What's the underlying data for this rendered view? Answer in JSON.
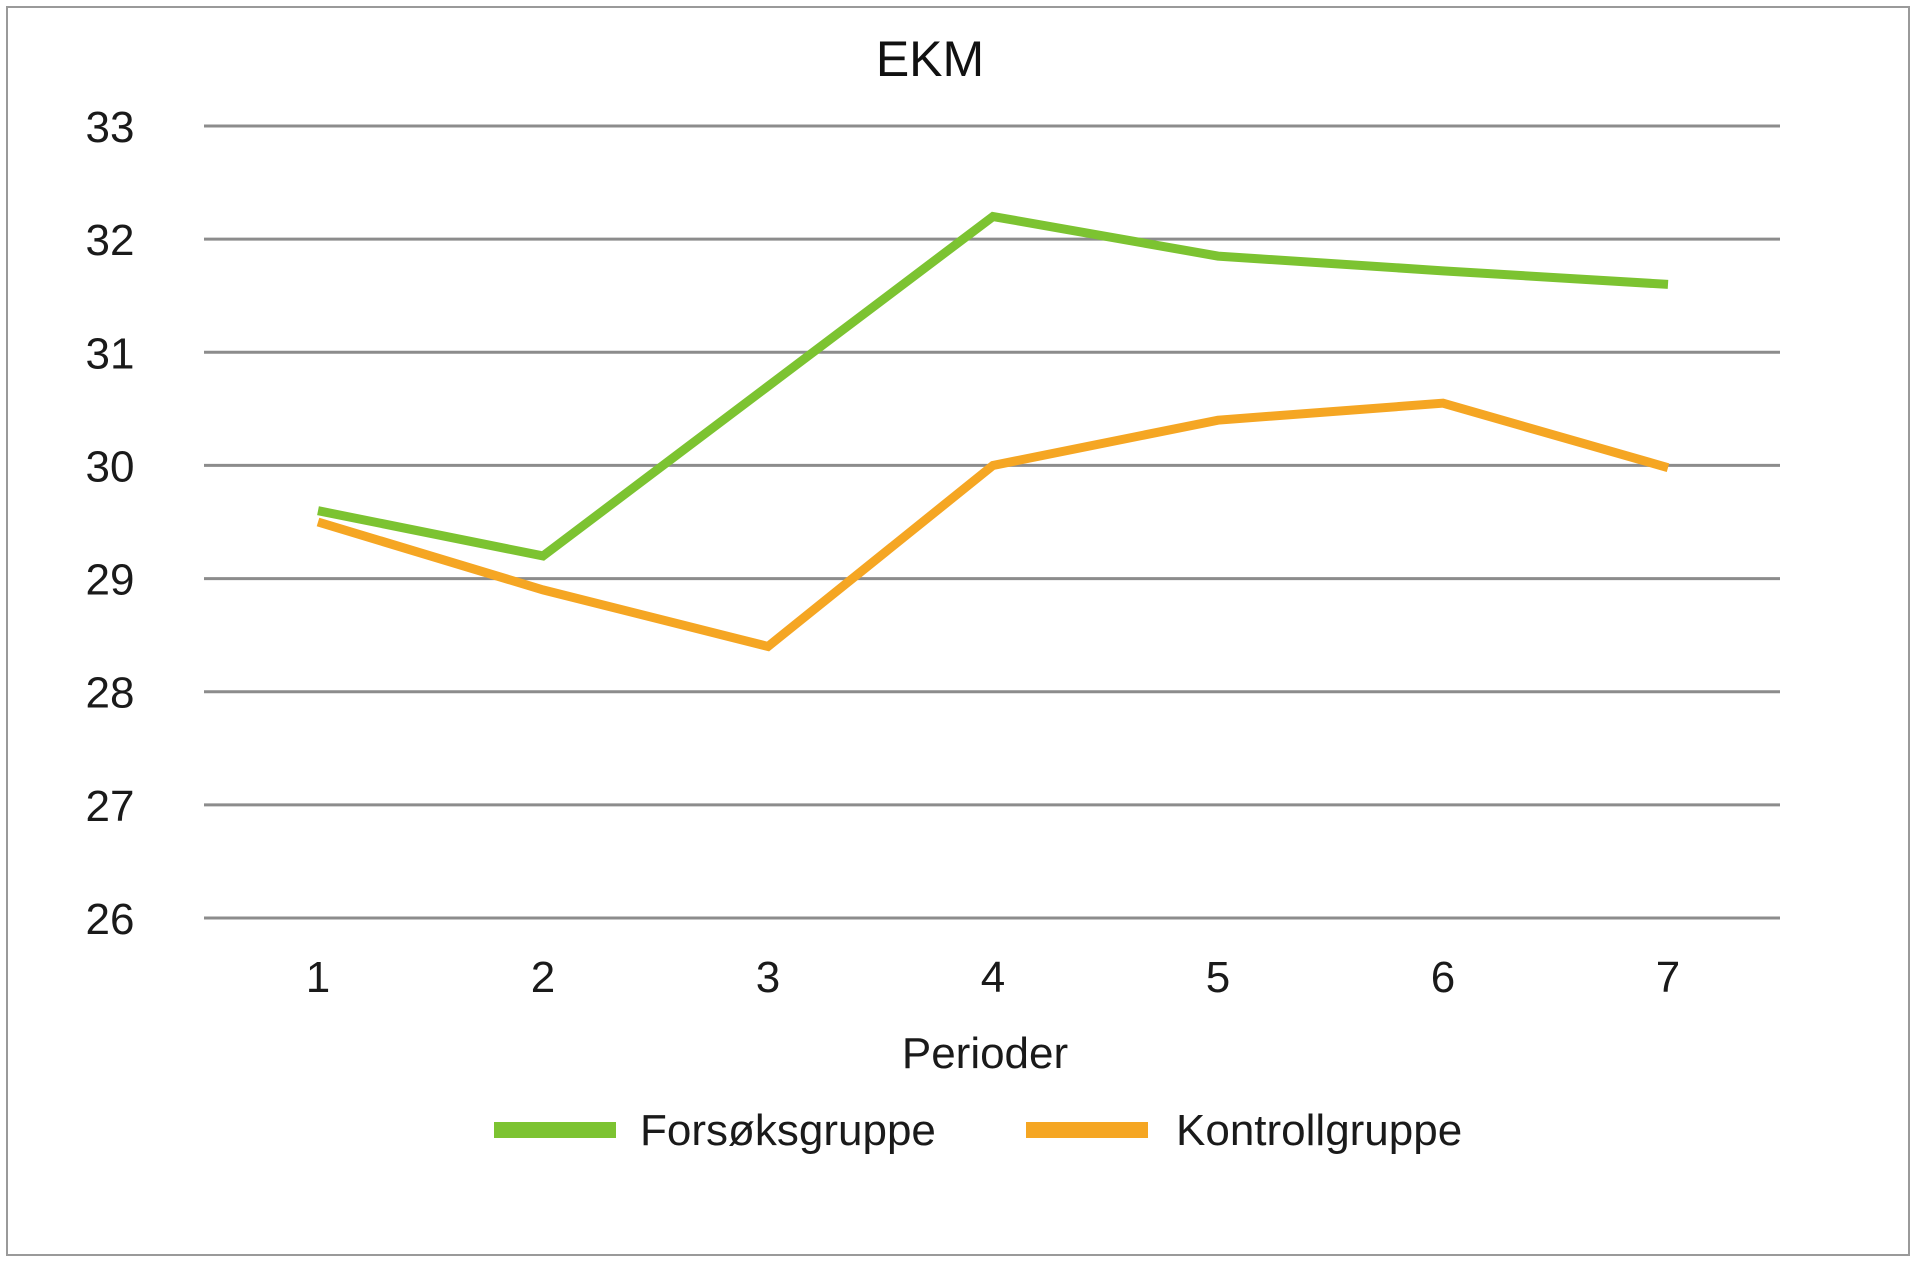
{
  "chart_data": {
    "type": "line",
    "title": "EKM",
    "xlabel": "Perioder",
    "ylabel": "",
    "categories": [
      "1",
      "2",
      "3",
      "4",
      "5",
      "6",
      "7"
    ],
    "ylim": [
      26,
      33
    ],
    "yticks": [
      26,
      27,
      28,
      29,
      30,
      31,
      32,
      33
    ],
    "grid": true,
    "legend": "bottom",
    "series": [
      {
        "name": "Forsøksgruppe",
        "color": "#7cc331",
        "values": [
          29.6,
          29.2,
          30.7,
          32.2,
          31.85,
          31.72,
          31.6
        ]
      },
      {
        "name": "Kontrollgruppe",
        "color": "#f5a623",
        "values": [
          29.5,
          28.9,
          28.4,
          30.0,
          30.4,
          30.55,
          29.98
        ]
      }
    ]
  }
}
